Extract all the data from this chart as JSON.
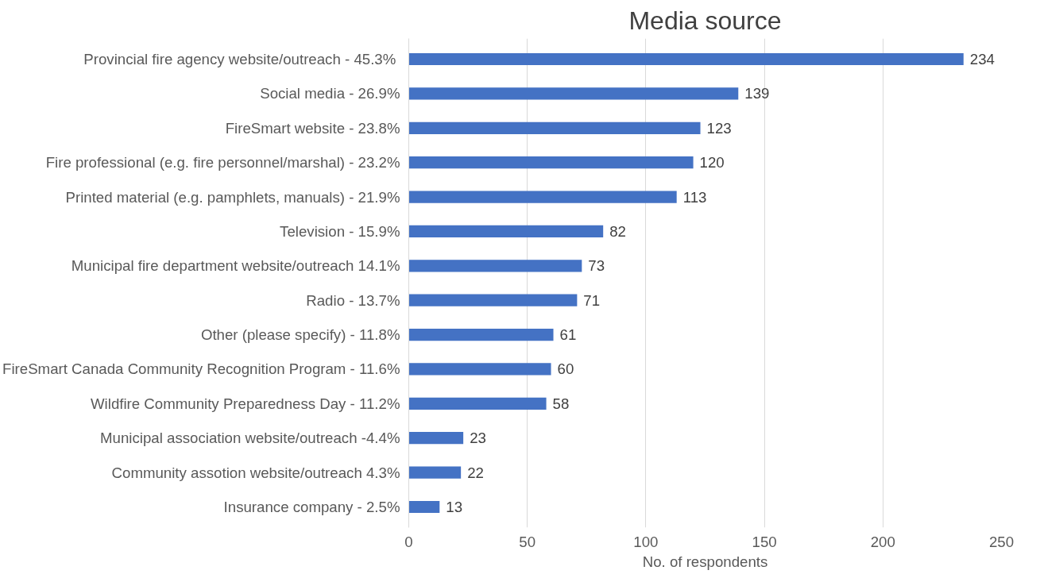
{
  "chart_data": {
    "type": "bar",
    "orientation": "horizontal",
    "title": "Media source",
    "xlabel": "No. of respondents",
    "categories": [
      "Provincial fire agency website/outreach  - 45.3%",
      "Social media - 26.9%",
      "FireSmart website - 23.8%",
      "Fire professional (e.g. fire personnel/marshal) - 23.2%",
      "Printed material (e.g. pamphlets, manuals) - 21.9%",
      "Television - 15.9%",
      "Municipal fire department website/outreach 14.1%",
      "Radio - 13.7%",
      "Other (please specify) - 11.8%",
      "FireSmart Canada Community Recognition Program - 11.6%",
      "Wildfire Community Preparedness Day - 11.2%",
      "Municipal association website/outreach -4.4%",
      "Community assotion website/outreach 4.3%",
      "Insurance company - 2.5%"
    ],
    "values": [
      234,
      139,
      123,
      120,
      113,
      82,
      73,
      71,
      61,
      60,
      58,
      23,
      22,
      13
    ],
    "color": "#4472c4",
    "xlim": [
      0,
      250
    ],
    "xticks": [
      0,
      50,
      100,
      150,
      200,
      250
    ],
    "grid": "x",
    "data_labels": true
  }
}
